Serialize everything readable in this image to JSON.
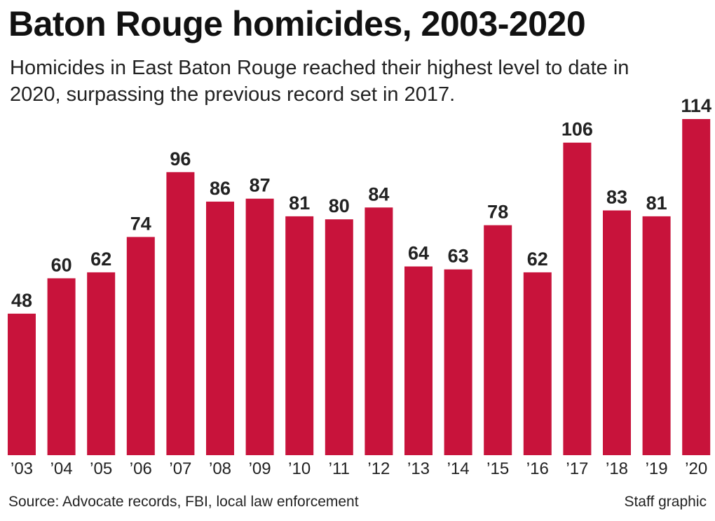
{
  "chart_data": {
    "type": "bar",
    "title": "Baton Rouge homicides, 2003-2020",
    "subtitle": "Homicides in East Baton Rouge reached their highest level to date in 2020, surpassing the previous record set in 2017.",
    "categories": [
      "’03",
      "’04",
      "’05",
      "’06",
      "’07",
      "’08",
      "’09",
      "’10",
      "’11",
      "’12",
      "’13",
      "’14",
      "’15",
      "’16",
      "’17",
      "’18",
      "’19",
      "’20"
    ],
    "values": [
      48,
      60,
      62,
      74,
      96,
      86,
      87,
      81,
      80,
      84,
      64,
      63,
      78,
      62,
      106,
      83,
      81,
      114
    ],
    "ylim": [
      0,
      114
    ],
    "grid": false,
    "bar_color": "#c8133b"
  },
  "footer": {
    "source": "Source: Advocate records, FBI, local law enforcement",
    "credit": "Staff graphic"
  }
}
